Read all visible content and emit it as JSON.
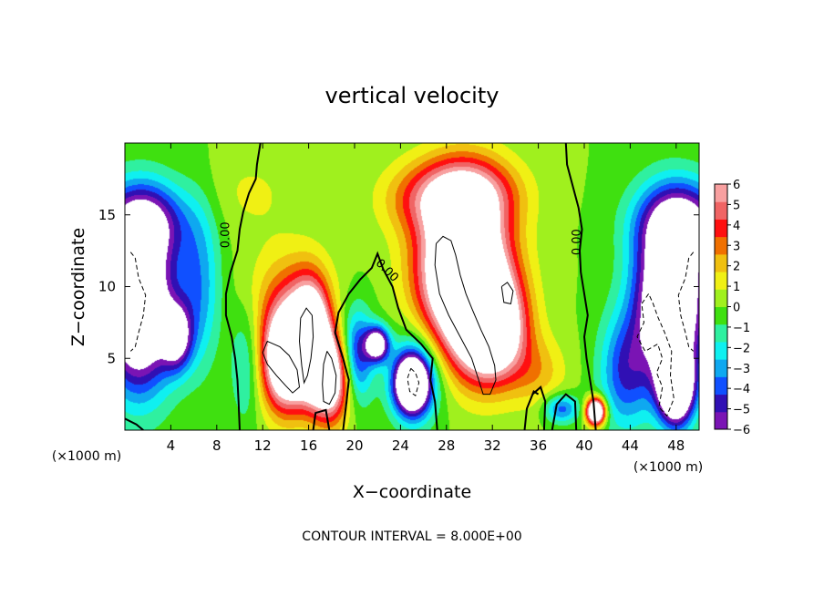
{
  "chart_data": {
    "type": "heatmap",
    "title": "vertical velocity",
    "xlabel": "X−coordinate",
    "ylabel": "Z−coordinate",
    "x_unit_left": "(×1000 m)",
    "x_unit_right": "(×1000 m)",
    "footer": "CONTOUR INTERVAL = 8.000E+00",
    "xlim": [
      0,
      50
    ],
    "ylim": [
      0,
      20
    ],
    "x_ticks": [
      4,
      8,
      12,
      16,
      20,
      24,
      28,
      32,
      36,
      40,
      44,
      48
    ],
    "y_ticks": [
      5,
      10,
      15
    ],
    "colorbar": {
      "range": [
        -6,
        6
      ],
      "ticks": [
        "6",
        "5",
        "4",
        "3",
        "2",
        "1",
        "0",
        "−1",
        "−2",
        "−3",
        "−4",
        "−5",
        "−6"
      ],
      "colors": [
        "#7a14b4",
        "#3010b4",
        "#1050ff",
        "#0fa8f0",
        "#0ff0f0",
        "#2ff0a0",
        "#3fe010",
        "#a0f01e",
        "#f0f014",
        "#f0c010",
        "#f07000",
        "#ff1010",
        "#f06464",
        "#f8a0a0"
      ]
    },
    "contour_labels": [
      {
        "text": "0.00",
        "x": 8.8,
        "z": 13.6,
        "rotate": -90
      },
      {
        "text": "0.00",
        "x": 22.8,
        "z": 11.1,
        "rotate": 45
      },
      {
        "text": "0.00",
        "x": 39.4,
        "z": 13.1,
        "rotate": -90
      }
    ],
    "field_blobs": [
      {
        "x": 1.2,
        "z": 8.5,
        "sx": 3.0,
        "sz": 5.5,
        "a": -11
      },
      {
        "x": 1.5,
        "z": 14.5,
        "sx": 3.8,
        "sz": 2.8,
        "a": -6
      },
      {
        "x": 4.5,
        "z": 6.5,
        "sx": 1.3,
        "sz": 2.2,
        "a": -6
      },
      {
        "x": 6.5,
        "z": 10.0,
        "sx": 1.8,
        "sz": 5.5,
        "a": -3
      },
      {
        "x": 14.0,
        "z": 5.0,
        "sx": 2.0,
        "sz": 3.5,
        "a": 11
      },
      {
        "x": 16.2,
        "z": 6.5,
        "sx": 1.6,
        "sz": 3.5,
        "a": 10
      },
      {
        "x": 17.8,
        "z": 3.6,
        "sx": 1.8,
        "sz": 3.0,
        "a": 9
      },
      {
        "x": 14.5,
        "z": 9.5,
        "sx": 3.5,
        "sz": 3.5,
        "a": 2.5
      },
      {
        "x": 10.5,
        "z": 4.5,
        "sx": 1.3,
        "sz": 4.0,
        "a": -2
      },
      {
        "x": 20.2,
        "z": 5.2,
        "sx": 1.4,
        "sz": 3.2,
        "a": -5
      },
      {
        "x": 22.0,
        "z": 6.0,
        "sx": 1.0,
        "sz": 1.2,
        "a": -8
      },
      {
        "x": 25.0,
        "z": 3.2,
        "sx": 1.5,
        "sz": 2.0,
        "a": -11
      },
      {
        "x": 25.5,
        "z": 4.0,
        "sx": 2.5,
        "sz": 3.5,
        "a": -3
      },
      {
        "x": 29.5,
        "z": 11.0,
        "sx": 3.8,
        "sz": 5.5,
        "a": 13
      },
      {
        "x": 32.0,
        "z": 7.0,
        "sx": 2.8,
        "sz": 3.5,
        "a": 9
      },
      {
        "x": 29.5,
        "z": 16.5,
        "sx": 4.5,
        "sz": 2.5,
        "a": 5
      },
      {
        "x": 36.0,
        "z": 4.0,
        "sx": 2.5,
        "sz": 2.5,
        "a": 2
      },
      {
        "x": 41.0,
        "z": 1.3,
        "sx": 0.8,
        "sz": 0.9,
        "a": 12
      },
      {
        "x": 38.0,
        "z": 1.5,
        "sx": 1.5,
        "sz": 1.0,
        "a": -4
      },
      {
        "x": 43.5,
        "z": 4.0,
        "sx": 2.2,
        "sz": 4.0,
        "a": -4
      },
      {
        "x": 47.5,
        "z": 9.0,
        "sx": 3.0,
        "sz": 5.5,
        "a": -11
      },
      {
        "x": 48.5,
        "z": 14.5,
        "sx": 3.8,
        "sz": 2.8,
        "a": -6
      },
      {
        "x": 48.0,
        "z": 3.0,
        "sx": 1.5,
        "sz": 2.5,
        "a": -11
      },
      {
        "x": 25.0,
        "z": 16.0,
        "sx": 3.5,
        "sz": 2.5,
        "a": 1.5
      },
      {
        "x": 11.0,
        "z": 16.5,
        "sx": 4.0,
        "sz": 3.0,
        "a": 1.0
      }
    ],
    "zero_contours": [
      [
        [
          11.8,
          20
        ],
        [
          11.5,
          18.5
        ],
        [
          11.4,
          17.5
        ],
        [
          10.8,
          16.5
        ],
        [
          10.3,
          15.2
        ],
        [
          10.0,
          14.0
        ],
        [
          9.8,
          12.5
        ],
        [
          9.2,
          11.0
        ],
        [
          8.8,
          9.5
        ],
        [
          8.8,
          8.0
        ],
        [
          9.3,
          6.5
        ],
        [
          9.6,
          5.0
        ],
        [
          9.8,
          3.5
        ],
        [
          9.9,
          2.0
        ],
        [
          10.0,
          0
        ]
      ],
      [
        [
          38.4,
          20
        ],
        [
          38.5,
          18.5
        ],
        [
          39.0,
          17.0
        ],
        [
          39.5,
          15.5
        ],
        [
          39.8,
          14.0
        ],
        [
          39.6,
          12.5
        ],
        [
          39.7,
          11.0
        ],
        [
          40.0,
          9.5
        ],
        [
          40.3,
          8.0
        ],
        [
          40.0,
          6.5
        ],
        [
          40.2,
          5.0
        ],
        [
          40.5,
          3.5
        ],
        [
          40.8,
          2.0
        ],
        [
          41.0,
          0
        ]
      ],
      [
        [
          19.0,
          0
        ],
        [
          19.3,
          2.0
        ],
        [
          19.5,
          3.5
        ],
        [
          19.0,
          5.0
        ],
        [
          18.3,
          6.8
        ],
        [
          18.6,
          8.2
        ],
        [
          19.5,
          9.5
        ],
        [
          20.5,
          10.5
        ],
        [
          21.5,
          11.3
        ],
        [
          22.0,
          12.3
        ],
        [
          22.5,
          11.2
        ],
        [
          23.3,
          10.0
        ],
        [
          23.8,
          8.5
        ],
        [
          24.5,
          7.0
        ],
        [
          25.8,
          6.0
        ],
        [
          26.8,
          5.0
        ],
        [
          26.6,
          3.5
        ],
        [
          27.0,
          2.0
        ],
        [
          27.2,
          0
        ]
      ],
      [
        [
          36.5,
          0
        ],
        [
          36.6,
          2.0
        ],
        [
          36.2,
          3.0
        ],
        [
          35.5,
          2.5
        ]
      ],
      [
        [
          34.8,
          0
        ],
        [
          35.0,
          1.5
        ],
        [
          35.6,
          2.7
        ],
        [
          36.0,
          2.5
        ]
      ],
      [
        [
          37.2,
          0
        ],
        [
          37.6,
          1.8
        ],
        [
          38.4,
          2.5
        ],
        [
          39.2,
          2.0
        ],
        [
          39.3,
          0
        ]
      ],
      [
        [
          0,
          0.8
        ],
        [
          1.0,
          0.4
        ],
        [
          1.6,
          0
        ]
      ],
      [
        [
          16.4,
          0
        ],
        [
          16.6,
          1.2
        ],
        [
          17.5,
          1.4
        ],
        [
          17.8,
          0
        ]
      ]
    ],
    "positive_contours": [
      [
        [
          12.4,
          6.2
        ],
        [
          12.0,
          5.4
        ],
        [
          12.4,
          4.6
        ],
        [
          13.2,
          3.8
        ],
        [
          14.0,
          3.1
        ],
        [
          14.6,
          2.6
        ],
        [
          15.2,
          3.0
        ],
        [
          15.0,
          4.2
        ],
        [
          14.3,
          5.2
        ],
        [
          13.5,
          5.8
        ],
        [
          12.4,
          6.2
        ]
      ],
      [
        [
          15.3,
          7.8
        ],
        [
          15.8,
          8.5
        ],
        [
          16.3,
          8.0
        ],
        [
          16.4,
          6.5
        ],
        [
          16.2,
          5.0
        ],
        [
          15.9,
          3.8
        ],
        [
          15.6,
          3.3
        ],
        [
          15.4,
          4.5
        ],
        [
          15.2,
          6.2
        ],
        [
          15.3,
          7.8
        ]
      ],
      [
        [
          17.6,
          5.5
        ],
        [
          18.0,
          5.0
        ],
        [
          18.4,
          3.8
        ],
        [
          18.3,
          2.6
        ],
        [
          17.8,
          1.8
        ],
        [
          17.3,
          2.0
        ],
        [
          17.2,
          3.2
        ],
        [
          17.3,
          4.6
        ],
        [
          17.6,
          5.5
        ]
      ],
      [
        [
          27.1,
          13.0
        ],
        [
          27.7,
          13.5
        ],
        [
          28.4,
          13.2
        ],
        [
          28.8,
          12.2
        ],
        [
          29.2,
          10.8
        ],
        [
          29.7,
          9.5
        ],
        [
          30.2,
          8.5
        ],
        [
          31.0,
          7.0
        ],
        [
          31.7,
          5.8
        ],
        [
          32.2,
          4.5
        ],
        [
          32.3,
          3.5
        ],
        [
          31.8,
          2.5
        ],
        [
          31.2,
          2.5
        ],
        [
          30.8,
          3.5
        ],
        [
          30.2,
          5.0
        ],
        [
          29.2,
          6.5
        ],
        [
          28.2,
          8.0
        ],
        [
          27.4,
          9.5
        ],
        [
          27.0,
          11.5
        ],
        [
          27.1,
          13.0
        ]
      ],
      [
        [
          32.8,
          10.0
        ],
        [
          33.3,
          10.3
        ],
        [
          33.8,
          9.7
        ],
        [
          33.6,
          8.8
        ],
        [
          33.0,
          8.9
        ],
        [
          32.8,
          10.0
        ]
      ]
    ],
    "negative_contours": [
      [
        [
          0.5,
          12.4
        ],
        [
          0.9,
          12.0
        ],
        [
          1.2,
          10.6
        ],
        [
          1.8,
          9.4
        ],
        [
          1.6,
          8.0
        ],
        [
          1.2,
          6.8
        ],
        [
          0.9,
          5.8
        ],
        [
          0.5,
          5.5
        ]
      ],
      [
        [
          24.9,
          4.3
        ],
        [
          25.3,
          4.0
        ],
        [
          25.6,
          3.3
        ],
        [
          25.3,
          2.4
        ],
        [
          24.8,
          2.7
        ],
        [
          24.6,
          3.6
        ],
        [
          24.9,
          4.3
        ]
      ],
      [
        [
          49.5,
          12.4
        ],
        [
          49.1,
          12.0
        ],
        [
          48.8,
          10.6
        ],
        [
          48.2,
          9.4
        ],
        [
          48.4,
          8.0
        ],
        [
          48.8,
          6.8
        ],
        [
          49.1,
          5.8
        ],
        [
          49.5,
          5.5
        ]
      ],
      [
        [
          45.6,
          9.5
        ],
        [
          45.0,
          8.8
        ],
        [
          45.2,
          7.5
        ],
        [
          44.6,
          6.5
        ],
        [
          45.3,
          5.5
        ],
        [
          46.4,
          6.0
        ],
        [
          46.8,
          5.0
        ],
        [
          46.3,
          4.0
        ],
        [
          46.8,
          3.0
        ],
        [
          46.5,
          1.6
        ],
        [
          47.2,
          1.0
        ],
        [
          47.8,
          2.2
        ],
        [
          47.5,
          3.8
        ],
        [
          47.6,
          5.5
        ],
        [
          47.0,
          6.8
        ],
        [
          46.4,
          7.9
        ],
        [
          46.0,
          8.8
        ],
        [
          45.6,
          9.5
        ]
      ]
    ]
  }
}
